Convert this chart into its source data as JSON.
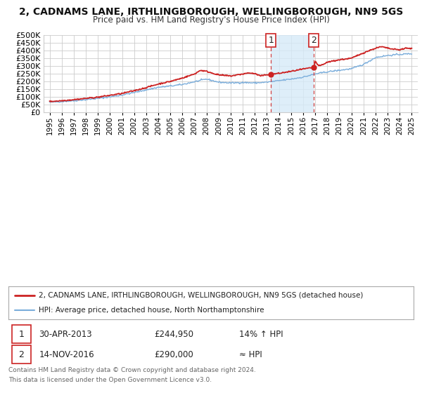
{
  "title": "2, CADNAMS LANE, IRTHLINGBOROUGH, WELLINGBOROUGH, NN9 5GS",
  "subtitle": "Price paid vs. HM Land Registry's House Price Index (HPI)",
  "legend_line1": "2, CADNAMS LANE, IRTHLINGBOROUGH, WELLINGBOROUGH, NN9 5GS (detached house)",
  "legend_line2": "HPI: Average price, detached house, North Northamptonshire",
  "footer_line1": "Contains HM Land Registry data © Crown copyright and database right 2024.",
  "footer_line2": "This data is licensed under the Open Government Licence v3.0.",
  "sale1_date": "30-APR-2013",
  "sale1_price": "£244,950",
  "sale1_hpi": "14% ↑ HPI",
  "sale2_date": "14-NOV-2016",
  "sale2_price": "£290,000",
  "sale2_hpi": "≈ HPI",
  "sale1_year": 2013.33,
  "sale1_value": 244950,
  "sale2_year": 2016.87,
  "sale2_value": 290000,
  "hpi_color": "#7aaddb",
  "price_color": "#cc2222",
  "sale_dot_color": "#cc2222",
  "shade_color": "#d6eaf8",
  "vline_color": "#cc2222",
  "grid_color": "#cccccc",
  "background_color": "#ffffff",
  "ylim": [
    0,
    500000
  ],
  "yticks": [
    0,
    50000,
    100000,
    150000,
    200000,
    250000,
    300000,
    350000,
    400000,
    450000,
    500000
  ],
  "xlim_start": 1994.5,
  "xlim_end": 2025.5,
  "xticks": [
    1995,
    1996,
    1997,
    1998,
    1999,
    2000,
    2001,
    2002,
    2003,
    2004,
    2005,
    2006,
    2007,
    2008,
    2009,
    2010,
    2011,
    2012,
    2013,
    2014,
    2015,
    2016,
    2017,
    2018,
    2019,
    2020,
    2021,
    2022,
    2023,
    2024,
    2025
  ]
}
